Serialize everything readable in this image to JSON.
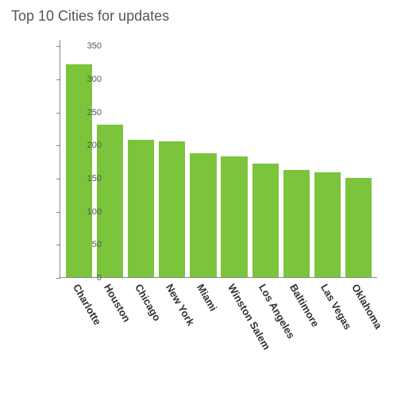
{
  "chart": {
    "type": "bar",
    "title": "Top 10 Cities for updates",
    "title_color": "#555555",
    "title_fontsize": 18,
    "bar_color": "#7bc43c",
    "axis_color": "#888888",
    "background_color": "#ffffff",
    "ylim_max": 360,
    "yticks": [
      0,
      50,
      100,
      150,
      200,
      250,
      300,
      350
    ],
    "ytick_fontsize": 11,
    "ytick_color": "#555555",
    "xlabel_fontsize": 13,
    "xlabel_fontweight": "bold",
    "xlabel_color": "#333333",
    "xlabel_rotation_deg": 60,
    "bar_width_ratio": 0.85,
    "categories": [
      "Charlotte",
      "Houston",
      "Chicago",
      "New York",
      "Miami",
      "Winston Salem",
      "Los Angeles",
      "Baltimore",
      "Las Vegas",
      "Oklahoma"
    ],
    "values": [
      322,
      230,
      208,
      205,
      187,
      183,
      172,
      162,
      158,
      150
    ]
  }
}
